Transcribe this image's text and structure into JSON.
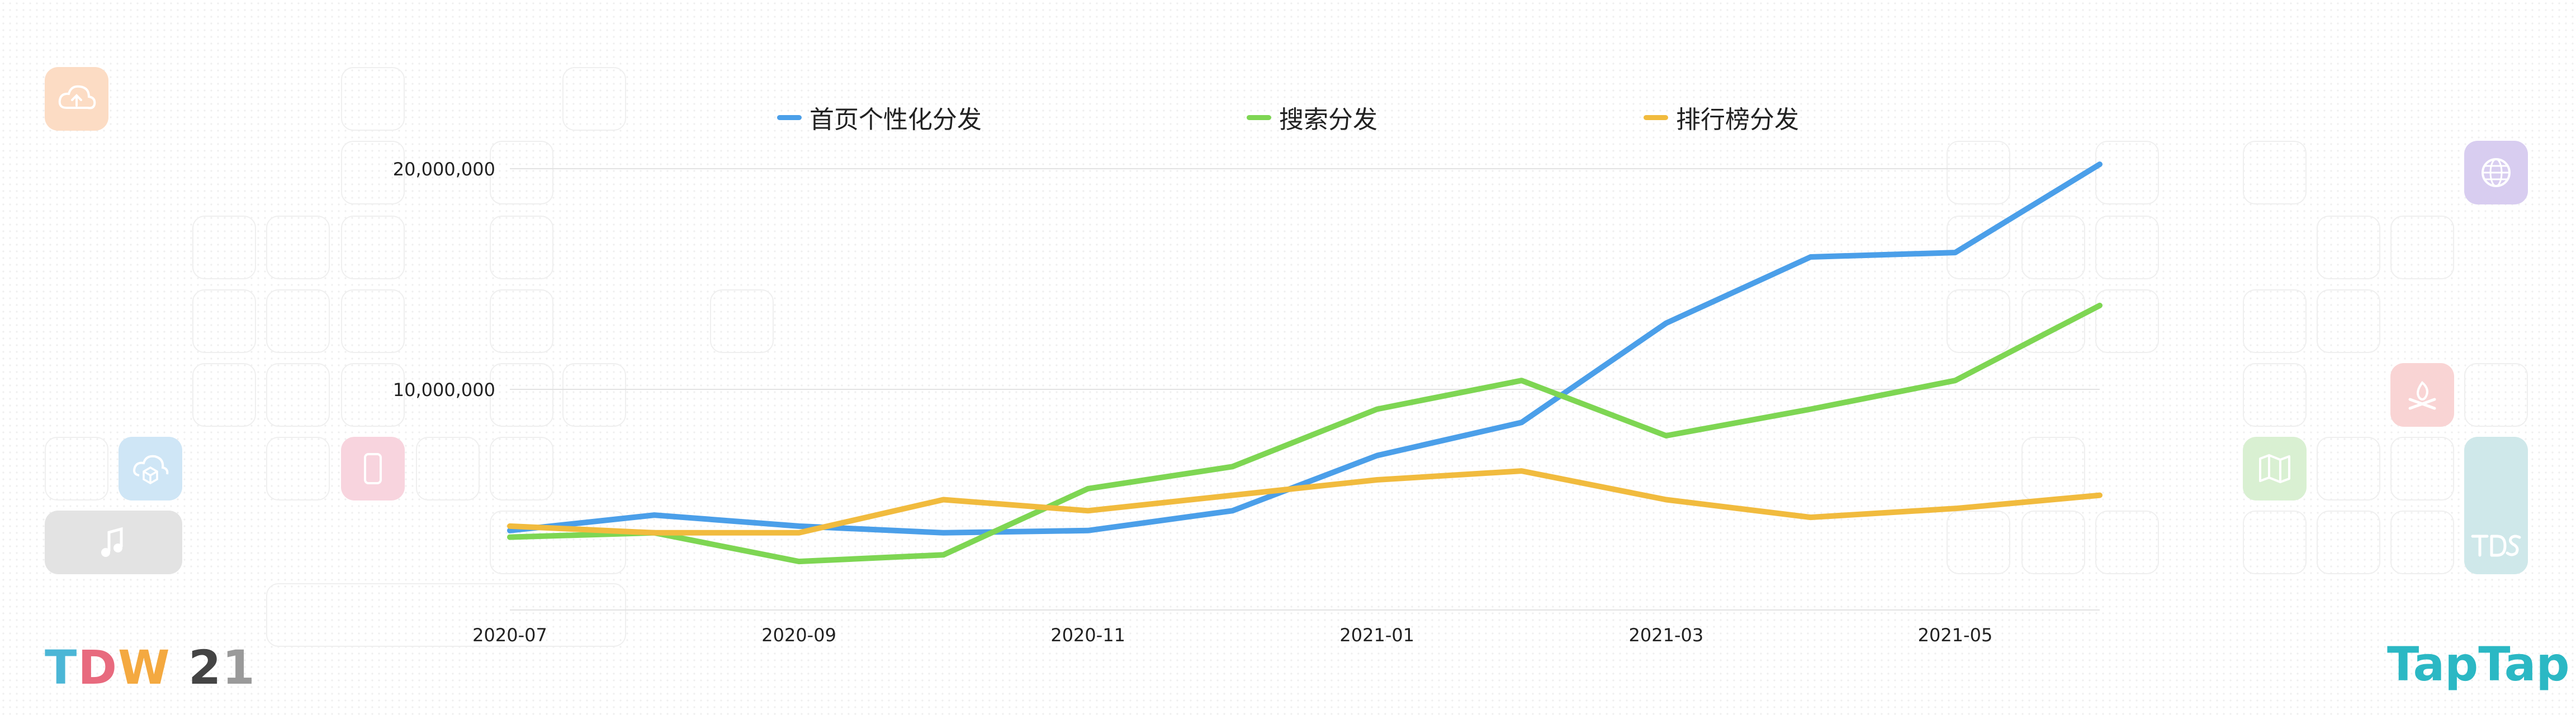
{
  "chart_data": {
    "type": "line",
    "title": "",
    "xlabel": "",
    "ylabel": "",
    "x": [
      "2020-07",
      "2020-08",
      "2020-09",
      "2020-10",
      "2020-11",
      "2020-12",
      "2021-01",
      "2021-02",
      "2021-03",
      "2021-04",
      "2021-05",
      "2021-06"
    ],
    "xtick_labels": [
      "2020-07",
      "2020-09",
      "2020-11",
      "2021-01",
      "2021-03",
      "2021-05"
    ],
    "ytick_labels": [
      "10,000,000",
      "20,000,000"
    ],
    "ytick_values": [
      10000000,
      20000000
    ],
    "ylim": [
      0,
      20000000
    ],
    "grid": true,
    "legend_position": "top-center",
    "series": [
      {
        "name": "首页个性化分发",
        "color": "#4b9fe9",
        "values": [
          3600000,
          4300000,
          3800000,
          3500000,
          3600000,
          4500000,
          7000000,
          8500000,
          13000000,
          16000000,
          16200000,
          20200000
        ]
      },
      {
        "name": "搜索分发",
        "color": "#7ed653",
        "values": [
          3300000,
          3500000,
          2200000,
          2500000,
          5500000,
          6500000,
          9100000,
          10400000,
          7900000,
          9100000,
          10400000,
          13800000
        ]
      },
      {
        "name": "排行榜分发",
        "color": "#f1bb3e",
        "values": [
          3800000,
          3500000,
          3500000,
          5000000,
          4500000,
          5200000,
          5900000,
          6300000,
          5000000,
          4200000,
          4600000,
          5200000
        ]
      }
    ]
  },
  "branding": {
    "left_logo": {
      "parts": [
        "T",
        "D",
        "W",
        " 2",
        "1"
      ],
      "colors": [
        "#4bb6d6",
        "#e86a7e",
        "#f4a940",
        "#444444",
        "#9a9a9a"
      ]
    },
    "right_logo": {
      "text": "TapTap",
      "color": "#2bb8c4"
    }
  },
  "decor_icons": [
    {
      "name": "cloud-upload-icon",
      "color": "#fcdcc4"
    },
    {
      "name": "music-note-icon",
      "color": "#e3e3e3"
    },
    {
      "name": "cloud-box-icon",
      "color": "#cfe6f6"
    },
    {
      "name": "phone-icon",
      "color": "#f8d4de"
    },
    {
      "name": "globe-icon",
      "color": "#d8cdf0"
    },
    {
      "name": "campfire-icon",
      "color": "#f9d4d4"
    },
    {
      "name": "map-icon",
      "color": "#d9f0d2"
    },
    {
      "name": "tds-icon",
      "color": "#cfe8ea"
    }
  ]
}
